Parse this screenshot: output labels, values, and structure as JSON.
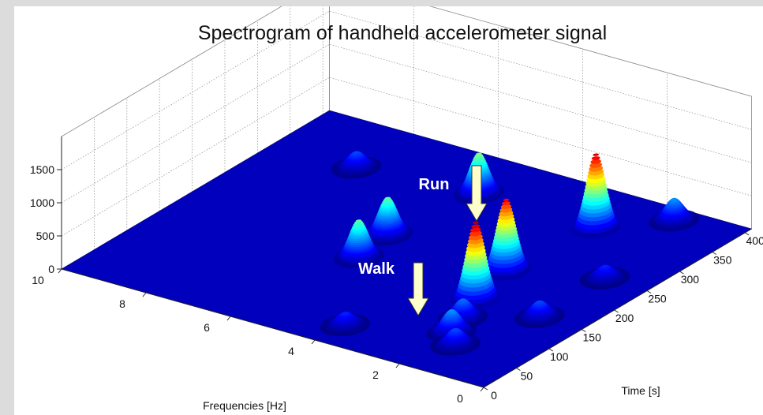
{
  "chart_data": {
    "type": "surface3d",
    "title": "Spectrogram of handheld accelerometer signal",
    "xlabel": "Frequencies [Hz]",
    "ylabel": "Time [s]",
    "xlim": [
      0,
      10
    ],
    "xticks": [
      0,
      2,
      4,
      6,
      8,
      10
    ],
    "ylim": [
      0,
      410
    ],
    "yticks": [
      0,
      50,
      100,
      150,
      200,
      250,
      300,
      350,
      400
    ],
    "zlim": [
      0,
      2000
    ],
    "zticks": [
      0,
      500,
      1000,
      1500
    ],
    "grid": true,
    "colormap": "jet",
    "x": [
      2.45,
      2.45,
      2.75,
      5.3,
      5.65,
      5.5,
      1.45,
      8,
      2.0,
      2.2,
      1.6,
      1.0,
      1.0,
      3.9
    ],
    "y": [
      330,
      146,
      212,
      335,
      218,
      164,
      385,
      322,
      80,
      110,
      60,
      150,
      250,
      40
    ],
    "z": [
      1200,
      1250,
      1150,
      650,
      600,
      600,
      350,
      250,
      350,
      300,
      250,
      250,
      200,
      200
    ],
    "annotations": [
      {
        "text": "Run"
      },
      {
        "text": "Walk"
      }
    ]
  }
}
